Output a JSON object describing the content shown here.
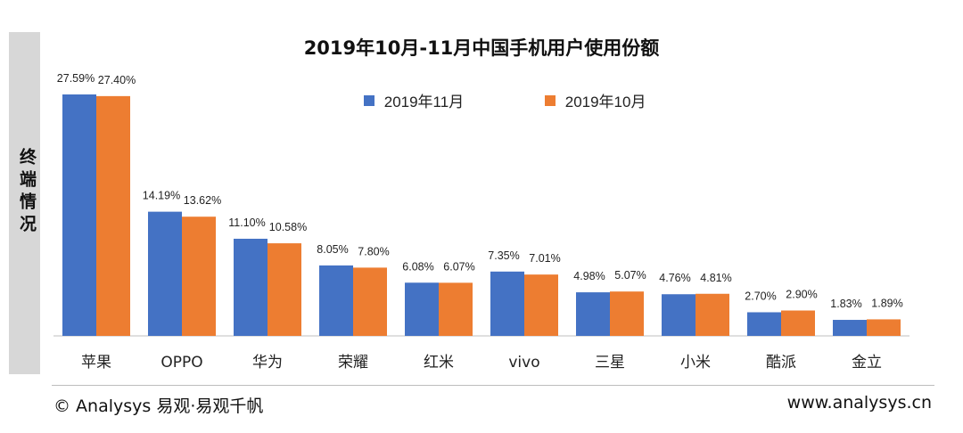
{
  "side_label": "终端情况",
  "footer": {
    "left": "© Analysys 易观·易观千帆",
    "right": "www.analysys.cn"
  },
  "colors": {
    "series_nov": "#4472C4",
    "series_oct": "#ED7D31"
  },
  "chart_data": {
    "type": "bar",
    "title": "2019年10月-11月中国手机用户使用份额",
    "categories": [
      "苹果",
      "OPPO",
      "华为",
      "荣耀",
      "红米",
      "vivo",
      "三星",
      "小米",
      "酷派",
      "金立"
    ],
    "series": [
      {
        "name": "2019年11月",
        "values": [
          27.59,
          14.19,
          11.1,
          8.05,
          6.08,
          7.35,
          4.98,
          4.76,
          2.7,
          1.83
        ],
        "labels": [
          "27.59%",
          "14.19%",
          "11.10%",
          "8.05%",
          "6.08%",
          "7.35%",
          "4.98%",
          "4.76%",
          "2.70%",
          "1.83%"
        ]
      },
      {
        "name": "2019年10月",
        "values": [
          27.4,
          13.62,
          10.58,
          7.8,
          6.07,
          7.01,
          5.07,
          4.81,
          2.9,
          1.89
        ],
        "labels": [
          "27.40%",
          "13.62%",
          "10.58%",
          "7.80%",
          "6.07%",
          "7.01%",
          "5.07%",
          "4.81%",
          "2.90%",
          "1.89%"
        ]
      }
    ],
    "xlabel": "",
    "ylabel": "",
    "ylim": [
      0,
      28
    ],
    "grid": false,
    "legend": "top-right"
  }
}
